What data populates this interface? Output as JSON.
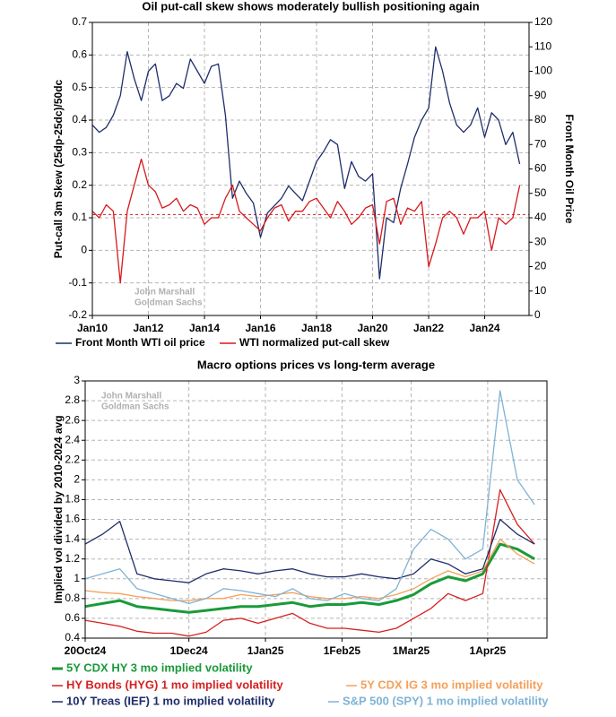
{
  "chart_data": [
    {
      "type": "line",
      "title": "Oil put-call skew shows moderately bullish positioning again",
      "y_label": "Put-call 3m Skew (25dp-25dc)/50dc",
      "y2_label": "Front Month Oil Price",
      "annotations": [
        "John Marshall",
        "Goldman Sachs"
      ],
      "x": [
        "2010-01",
        "2010-04",
        "2010-07",
        "2010-10",
        "2011-01",
        "2011-04",
        "2011-07",
        "2011-10",
        "2012-01",
        "2012-04",
        "2012-07",
        "2012-10",
        "2013-01",
        "2013-04",
        "2013-07",
        "2013-10",
        "2014-01",
        "2014-04",
        "2014-07",
        "2014-10",
        "2015-01",
        "2015-04",
        "2015-07",
        "2015-10",
        "2016-01",
        "2016-04",
        "2016-07",
        "2016-10",
        "2017-01",
        "2017-04",
        "2017-07",
        "2017-10",
        "2018-01",
        "2018-04",
        "2018-07",
        "2018-10",
        "2019-01",
        "2019-04",
        "2019-07",
        "2019-10",
        "2020-01",
        "2020-04",
        "2020-07",
        "2020-10",
        "2021-01",
        "2021-04",
        "2021-07",
        "2021-10",
        "2022-01",
        "2022-04",
        "2022-07",
        "2022-10",
        "2023-01",
        "2023-04",
        "2023-07",
        "2023-10",
        "2024-01",
        "2024-04",
        "2024-07",
        "2024-10",
        "2025-01",
        "2025-04"
      ],
      "series": [
        {
          "name": "Front Month WTI oil price",
          "color": "#1f2d6b",
          "axis": "y2",
          "values": [
            78,
            75,
            77,
            82,
            90,
            108,
            97,
            88,
            100,
            103,
            88,
            90,
            95,
            93,
            105,
            100,
            95,
            102,
            103,
            82,
            48,
            55,
            50,
            46,
            32,
            42,
            45,
            48,
            53,
            50,
            47,
            55,
            63,
            67,
            72,
            70,
            52,
            63,
            57,
            55,
            58,
            15,
            40,
            38,
            52,
            62,
            73,
            80,
            85,
            110,
            100,
            87,
            78,
            75,
            78,
            85,
            73,
            83,
            80,
            70,
            75,
            62
          ]
        },
        {
          "name": "WTI normalized put-call skew",
          "color": "#d7191c",
          "values": [
            0.12,
            0.1,
            0.14,
            0.12,
            -0.1,
            0.12,
            0.2,
            0.28,
            0.2,
            0.18,
            0.13,
            0.14,
            0.16,
            0.12,
            0.14,
            0.13,
            0.08,
            0.1,
            0.1,
            0.16,
            0.2,
            0.12,
            0.1,
            0.08,
            0.06,
            0.1,
            0.13,
            0.14,
            0.09,
            0.12,
            0.12,
            0.15,
            0.16,
            0.13,
            0.1,
            0.15,
            0.12,
            0.08,
            0.1,
            0.13,
            0.14,
            0.02,
            0.15,
            0.16,
            0.08,
            0.13,
            0.12,
            0.15,
            -0.05,
            0.02,
            0.1,
            0.12,
            0.1,
            0.05,
            0.1,
            0.1,
            0.12,
            0,
            0.1,
            0.08,
            0.1,
            0.2
          ]
        }
      ],
      "hline": {
        "value": 0.11,
        "color": "#d7191c"
      },
      "xlim": [
        "2010-01",
        "2025-08"
      ],
      "xticks": [
        {
          "value": "2010-01",
          "label": "Jan10"
        },
        {
          "value": "2012-01",
          "label": "Jan12"
        },
        {
          "value": "2014-01",
          "label": "Jan14"
        },
        {
          "value": "2016-01",
          "label": "Jan16"
        },
        {
          "value": "2018-01",
          "label": "Jan18"
        },
        {
          "value": "2020-01",
          "label": "Jan20"
        },
        {
          "value": "2022-01",
          "label": "Jan22"
        },
        {
          "value": "2024-01",
          "label": "Jan24"
        }
      ],
      "ylim": [
        -0.2,
        0.7
      ],
      "yticks": [
        -0.2,
        -0.1,
        0,
        0.1,
        0.2,
        0.3,
        0.4,
        0.5,
        0.6,
        0.7
      ],
      "y2lim": [
        0,
        120
      ],
      "y2ticks": [
        0,
        10,
        20,
        30,
        40,
        50,
        60,
        70,
        80,
        90,
        100,
        110,
        120
      ],
      "grid": true,
      "legend": "bottom"
    },
    {
      "type": "line",
      "title": "Macro options prices vs long-term average",
      "y_label": "Implied vol divided by 2010-2024 avg",
      "annotations": [
        "John Marshall",
        "Goldman Sachs"
      ],
      "x": [
        "2024-10-20",
        "2024-10-27",
        "2024-11-03",
        "2024-11-10",
        "2024-11-17",
        "2024-11-24",
        "2024-12-01",
        "2024-12-08",
        "2024-12-15",
        "2024-12-22",
        "2024-12-29",
        "2025-01-05",
        "2025-01-12",
        "2025-01-19",
        "2025-01-26",
        "2025-02-02",
        "2025-02-09",
        "2025-02-16",
        "2025-02-23",
        "2025-03-02",
        "2025-03-09",
        "2025-03-16",
        "2025-03-23",
        "2025-03-30",
        "2025-04-06",
        "2025-04-13",
        "2025-04-20"
      ],
      "series": [
        {
          "name": "5Y CDX HY 3 mo implied volatility",
          "color": "#1a9a3a",
          "width": 3,
          "values": [
            0.72,
            0.75,
            0.78,
            0.72,
            0.7,
            0.68,
            0.66,
            0.68,
            0.7,
            0.72,
            0.72,
            0.74,
            0.76,
            0.72,
            0.74,
            0.74,
            0.76,
            0.74,
            0.78,
            0.84,
            0.95,
            1.02,
            0.98,
            1.05,
            1.35,
            1.3,
            1.2
          ]
        },
        {
          "name": "HY Bonds (HYG) 1 mo implied volatility",
          "color": "#d62020",
          "values": [
            0.58,
            0.55,
            0.52,
            0.47,
            0.45,
            0.45,
            0.42,
            0.46,
            0.58,
            0.6,
            0.55,
            0.6,
            0.65,
            0.55,
            0.5,
            0.5,
            0.48,
            0.46,
            0.5,
            0.6,
            0.7,
            0.85,
            0.78,
            0.85,
            1.9,
            1.55,
            1.35
          ]
        },
        {
          "name": "5Y CDX IG 3 mo implied volatility",
          "color": "#f5a05a",
          "values": [
            0.88,
            0.86,
            0.85,
            0.82,
            0.8,
            0.78,
            0.78,
            0.8,
            0.8,
            0.84,
            0.82,
            0.84,
            0.86,
            0.82,
            0.8,
            0.8,
            0.82,
            0.8,
            0.84,
            0.9,
            1,
            1.08,
            1.02,
            1.08,
            1.4,
            1.25,
            1.15
          ]
        },
        {
          "name": "10Y Treas (IEF) 1 mo implied volatility",
          "color": "#1f2d6b",
          "values": [
            1.35,
            1.45,
            1.58,
            1.05,
            1,
            0.98,
            0.96,
            1.05,
            1.1,
            1.08,
            1.05,
            1.08,
            1.1,
            1.05,
            1.02,
            1.02,
            1.05,
            1.02,
            1,
            1.05,
            1.2,
            1.15,
            1.05,
            1.1,
            1.6,
            1.45,
            1.35
          ]
        },
        {
          "name": "S&P 500 (SPY) 1 mo implied volatility",
          "color": "#7fb3d5",
          "values": [
            1,
            1.05,
            1.1,
            0.9,
            0.85,
            0.8,
            0.75,
            0.8,
            0.9,
            0.88,
            0.85,
            0.82,
            0.9,
            0.8,
            0.78,
            0.85,
            0.8,
            0.78,
            0.9,
            1.3,
            1.5,
            1.4,
            1.2,
            1.3,
            2.9,
            2,
            1.75
          ]
        }
      ],
      "xlim": [
        "2024-10-20",
        "2025-04-25"
      ],
      "xticks": [
        {
          "value": "2024-10-20",
          "label": "20Oct24"
        },
        {
          "value": "2024-12-01",
          "label": "1Dec24"
        },
        {
          "value": "2025-01-01",
          "label": "1Jan25"
        },
        {
          "value": "2025-02-01",
          "label": "1Feb25"
        },
        {
          "value": "2025-03-01",
          "label": "1Mar25"
        },
        {
          "value": "2025-04-01",
          "label": "1Apr25"
        }
      ],
      "ylim": [
        0.4,
        3
      ],
      "yticks": [
        0.4,
        0.6,
        0.8,
        1,
        1.2,
        1.4,
        1.6,
        1.8,
        2,
        2.2,
        2.4,
        2.6,
        2.8,
        3
      ],
      "grid": true,
      "legend": "bottom"
    }
  ]
}
